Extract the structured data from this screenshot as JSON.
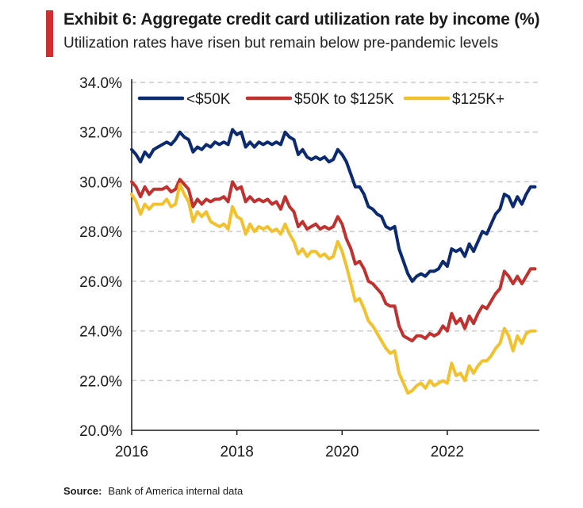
{
  "title": "Exhibit 6: Aggregate credit card utilization rate by income (%)",
  "subtitle": "Utilization rates have risen but remain below pre-pandemic levels",
  "source": {
    "label": "Source:",
    "text": "Bank of America internal data"
  },
  "colors": {
    "accent_bar": "#c8312f",
    "grid": "#c8c8c8",
    "axis": "#1a1a1a"
  },
  "chart_data": {
    "type": "line",
    "ylim": [
      20.0,
      34.0
    ],
    "y_ticks": [
      "20.0%",
      "22.0%",
      "24.0%",
      "26.0%",
      "28.0%",
      "30.0%",
      "32.0%",
      "34.0%"
    ],
    "y_tick_values": [
      20,
      22,
      24,
      26,
      28,
      30,
      32,
      34
    ],
    "x_ticks": [
      "2016",
      "2018",
      "2020",
      "2022"
    ],
    "x_tick_values": [
      2016,
      2018,
      2020,
      2022
    ],
    "xlim": [
      2016,
      2023.75
    ],
    "grid": "horizontal dashed",
    "legend_position": "top",
    "series": [
      {
        "name": "<$50K",
        "color": "#0b2a6f",
        "points": [
          [
            2016.0,
            31.3
          ],
          [
            2016.083,
            31.1
          ],
          [
            2016.167,
            30.8
          ],
          [
            2016.25,
            31.2
          ],
          [
            2016.333,
            31.0
          ],
          [
            2016.417,
            31.3
          ],
          [
            2016.5,
            31.4
          ],
          [
            2016.583,
            31.5
          ],
          [
            2016.667,
            31.6
          ],
          [
            2016.75,
            31.5
          ],
          [
            2016.833,
            31.7
          ],
          [
            2016.917,
            32.0
          ],
          [
            2017.0,
            31.8
          ],
          [
            2017.083,
            31.7
          ],
          [
            2017.167,
            31.2
          ],
          [
            2017.25,
            31.4
          ],
          [
            2017.333,
            31.3
          ],
          [
            2017.417,
            31.5
          ],
          [
            2017.5,
            31.4
          ],
          [
            2017.583,
            31.6
          ],
          [
            2017.667,
            31.5
          ],
          [
            2017.75,
            31.6
          ],
          [
            2017.833,
            31.5
          ],
          [
            2017.917,
            32.1
          ],
          [
            2018.0,
            31.9
          ],
          [
            2018.083,
            32.0
          ],
          [
            2018.167,
            31.4
          ],
          [
            2018.25,
            31.6
          ],
          [
            2018.333,
            31.4
          ],
          [
            2018.417,
            31.6
          ],
          [
            2018.5,
            31.5
          ],
          [
            2018.583,
            31.6
          ],
          [
            2018.667,
            31.5
          ],
          [
            2018.75,
            31.6
          ],
          [
            2018.833,
            31.5
          ],
          [
            2018.917,
            32.0
          ],
          [
            2019.0,
            31.8
          ],
          [
            2019.083,
            31.7
          ],
          [
            2019.167,
            31.1
          ],
          [
            2019.25,
            31.3
          ],
          [
            2019.333,
            31.0
          ],
          [
            2019.417,
            30.9
          ],
          [
            2019.5,
            31.0
          ],
          [
            2019.583,
            30.9
          ],
          [
            2019.667,
            31.0
          ],
          [
            2019.75,
            30.8
          ],
          [
            2019.833,
            30.9
          ],
          [
            2019.917,
            31.3
          ],
          [
            2020.0,
            31.1
          ],
          [
            2020.083,
            30.8
          ],
          [
            2020.167,
            30.3
          ],
          [
            2020.25,
            29.8
          ],
          [
            2020.333,
            29.8
          ],
          [
            2020.417,
            29.5
          ],
          [
            2020.5,
            29.0
          ],
          [
            2020.583,
            28.9
          ],
          [
            2020.667,
            28.7
          ],
          [
            2020.75,
            28.6
          ],
          [
            2020.833,
            28.2
          ],
          [
            2020.917,
            28.1
          ],
          [
            2021.0,
            28.2
          ],
          [
            2021.083,
            27.3
          ],
          [
            2021.167,
            26.8
          ],
          [
            2021.25,
            26.3
          ],
          [
            2021.333,
            26.0
          ],
          [
            2021.417,
            26.2
          ],
          [
            2021.5,
            26.3
          ],
          [
            2021.583,
            26.2
          ],
          [
            2021.667,
            26.4
          ],
          [
            2021.75,
            26.4
          ],
          [
            2021.833,
            26.5
          ],
          [
            2021.917,
            26.8
          ],
          [
            2022.0,
            26.6
          ],
          [
            2022.083,
            27.3
          ],
          [
            2022.167,
            27.2
          ],
          [
            2022.25,
            27.3
          ],
          [
            2022.333,
            27.0
          ],
          [
            2022.417,
            27.5
          ],
          [
            2022.5,
            27.2
          ],
          [
            2022.583,
            27.6
          ],
          [
            2022.667,
            28.0
          ],
          [
            2022.75,
            27.9
          ],
          [
            2022.833,
            28.3
          ],
          [
            2022.917,
            28.7
          ],
          [
            2023.0,
            28.9
          ],
          [
            2023.083,
            29.5
          ],
          [
            2023.167,
            29.4
          ],
          [
            2023.25,
            29.0
          ],
          [
            2023.333,
            29.4
          ],
          [
            2023.417,
            29.1
          ],
          [
            2023.5,
            29.5
          ],
          [
            2023.583,
            29.8
          ],
          [
            2023.667,
            29.8
          ]
        ]
      },
      {
        "name": "$50K to $125K",
        "color": "#c0322f",
        "points": [
          [
            2016.0,
            30.0
          ],
          [
            2016.083,
            29.8
          ],
          [
            2016.167,
            29.4
          ],
          [
            2016.25,
            29.8
          ],
          [
            2016.333,
            29.5
          ],
          [
            2016.417,
            29.7
          ],
          [
            2016.5,
            29.7
          ],
          [
            2016.583,
            29.7
          ],
          [
            2016.667,
            29.8
          ],
          [
            2016.75,
            29.6
          ],
          [
            2016.833,
            29.7
          ],
          [
            2016.917,
            30.1
          ],
          [
            2017.0,
            29.9
          ],
          [
            2017.083,
            29.7
          ],
          [
            2017.167,
            29.0
          ],
          [
            2017.25,
            29.3
          ],
          [
            2017.333,
            29.1
          ],
          [
            2017.417,
            29.3
          ],
          [
            2017.5,
            29.2
          ],
          [
            2017.583,
            29.3
          ],
          [
            2017.667,
            29.3
          ],
          [
            2017.75,
            29.4
          ],
          [
            2017.833,
            29.2
          ],
          [
            2017.917,
            30.0
          ],
          [
            2018.0,
            29.7
          ],
          [
            2018.083,
            29.8
          ],
          [
            2018.167,
            29.2
          ],
          [
            2018.25,
            29.4
          ],
          [
            2018.333,
            29.2
          ],
          [
            2018.417,
            29.3
          ],
          [
            2018.5,
            29.2
          ],
          [
            2018.583,
            29.3
          ],
          [
            2018.667,
            29.1
          ],
          [
            2018.75,
            29.2
          ],
          [
            2018.833,
            28.9
          ],
          [
            2018.917,
            29.4
          ],
          [
            2019.0,
            29.0
          ],
          [
            2019.083,
            28.8
          ],
          [
            2019.167,
            28.2
          ],
          [
            2019.25,
            28.4
          ],
          [
            2019.333,
            28.1
          ],
          [
            2019.417,
            28.2
          ],
          [
            2019.5,
            28.3
          ],
          [
            2019.583,
            28.1
          ],
          [
            2019.667,
            28.2
          ],
          [
            2019.75,
            28.1
          ],
          [
            2019.833,
            28.2
          ],
          [
            2019.917,
            28.6
          ],
          [
            2020.0,
            28.3
          ],
          [
            2020.083,
            27.7
          ],
          [
            2020.167,
            27.3
          ],
          [
            2020.25,
            26.7
          ],
          [
            2020.333,
            26.8
          ],
          [
            2020.417,
            26.5
          ],
          [
            2020.5,
            26.0
          ],
          [
            2020.583,
            25.9
          ],
          [
            2020.667,
            25.7
          ],
          [
            2020.75,
            25.5
          ],
          [
            2020.833,
            25.1
          ],
          [
            2020.917,
            25.0
          ],
          [
            2021.0,
            25.0
          ],
          [
            2021.083,
            24.2
          ],
          [
            2021.167,
            23.8
          ],
          [
            2021.25,
            23.7
          ],
          [
            2021.333,
            23.6
          ],
          [
            2021.417,
            23.8
          ],
          [
            2021.5,
            23.8
          ],
          [
            2021.583,
            23.7
          ],
          [
            2021.667,
            23.9
          ],
          [
            2021.75,
            23.8
          ],
          [
            2021.833,
            23.9
          ],
          [
            2021.917,
            24.2
          ],
          [
            2022.0,
            24.0
          ],
          [
            2022.083,
            24.7
          ],
          [
            2022.167,
            24.3
          ],
          [
            2022.25,
            24.5
          ],
          [
            2022.333,
            24.1
          ],
          [
            2022.417,
            24.6
          ],
          [
            2022.5,
            24.3
          ],
          [
            2022.583,
            24.7
          ],
          [
            2022.667,
            25.0
          ],
          [
            2022.75,
            24.9
          ],
          [
            2022.833,
            25.2
          ],
          [
            2022.917,
            25.5
          ],
          [
            2023.0,
            25.7
          ],
          [
            2023.083,
            26.4
          ],
          [
            2023.167,
            26.2
          ],
          [
            2023.25,
            25.9
          ],
          [
            2023.333,
            26.2
          ],
          [
            2023.417,
            25.9
          ],
          [
            2023.5,
            26.2
          ],
          [
            2023.583,
            26.5
          ],
          [
            2023.667,
            26.5
          ]
        ]
      },
      {
        "name": "$125K+",
        "color": "#f2c12e",
        "points": [
          [
            2016.0,
            29.5
          ],
          [
            2016.083,
            29.2
          ],
          [
            2016.167,
            28.7
          ],
          [
            2016.25,
            29.1
          ],
          [
            2016.333,
            28.9
          ],
          [
            2016.417,
            29.1
          ],
          [
            2016.5,
            29.1
          ],
          [
            2016.583,
            29.1
          ],
          [
            2016.667,
            29.3
          ],
          [
            2016.75,
            29.0
          ],
          [
            2016.833,
            29.1
          ],
          [
            2016.917,
            29.9
          ],
          [
            2017.0,
            29.5
          ],
          [
            2017.083,
            29.2
          ],
          [
            2017.167,
            28.4
          ],
          [
            2017.25,
            28.8
          ],
          [
            2017.333,
            28.6
          ],
          [
            2017.417,
            28.8
          ],
          [
            2017.5,
            28.4
          ],
          [
            2017.583,
            28.3
          ],
          [
            2017.667,
            28.2
          ],
          [
            2017.75,
            28.3
          ],
          [
            2017.833,
            28.1
          ],
          [
            2017.917,
            29.0
          ],
          [
            2018.0,
            28.6
          ],
          [
            2018.083,
            28.5
          ],
          [
            2018.167,
            27.9
          ],
          [
            2018.25,
            28.3
          ],
          [
            2018.333,
            28.0
          ],
          [
            2018.417,
            28.2
          ],
          [
            2018.5,
            28.1
          ],
          [
            2018.583,
            28.2
          ],
          [
            2018.667,
            28.0
          ],
          [
            2018.75,
            28.1
          ],
          [
            2018.833,
            27.9
          ],
          [
            2018.917,
            28.3
          ],
          [
            2019.0,
            27.9
          ],
          [
            2019.083,
            27.6
          ],
          [
            2019.167,
            27.1
          ],
          [
            2019.25,
            27.3
          ],
          [
            2019.333,
            27.0
          ],
          [
            2019.417,
            27.2
          ],
          [
            2019.5,
            27.2
          ],
          [
            2019.583,
            27.0
          ],
          [
            2019.667,
            27.1
          ],
          [
            2019.75,
            26.9
          ],
          [
            2019.833,
            27.0
          ],
          [
            2019.917,
            27.6
          ],
          [
            2020.0,
            27.2
          ],
          [
            2020.083,
            26.6
          ],
          [
            2020.167,
            25.9
          ],
          [
            2020.25,
            25.2
          ],
          [
            2020.333,
            25.3
          ],
          [
            2020.417,
            24.9
          ],
          [
            2020.5,
            24.4
          ],
          [
            2020.583,
            24.2
          ],
          [
            2020.667,
            23.9
          ],
          [
            2020.75,
            23.6
          ],
          [
            2020.833,
            23.3
          ],
          [
            2020.917,
            23.1
          ],
          [
            2021.0,
            23.2
          ],
          [
            2021.083,
            22.3
          ],
          [
            2021.167,
            21.9
          ],
          [
            2021.25,
            21.5
          ],
          [
            2021.333,
            21.6
          ],
          [
            2021.417,
            21.8
          ],
          [
            2021.5,
            21.9
          ],
          [
            2021.583,
            21.7
          ],
          [
            2021.667,
            22.0
          ],
          [
            2021.75,
            21.8
          ],
          [
            2021.833,
            21.9
          ],
          [
            2021.917,
            22.0
          ],
          [
            2022.0,
            21.9
          ],
          [
            2022.083,
            22.7
          ],
          [
            2022.167,
            22.2
          ],
          [
            2022.25,
            22.3
          ],
          [
            2022.333,
            22.0
          ],
          [
            2022.417,
            22.6
          ],
          [
            2022.5,
            22.3
          ],
          [
            2022.583,
            22.6
          ],
          [
            2022.667,
            22.8
          ],
          [
            2022.75,
            22.8
          ],
          [
            2022.833,
            23.0
          ],
          [
            2022.917,
            23.3
          ],
          [
            2023.0,
            23.5
          ],
          [
            2023.083,
            24.1
          ],
          [
            2023.167,
            23.8
          ],
          [
            2023.25,
            23.2
          ],
          [
            2023.333,
            23.8
          ],
          [
            2023.417,
            23.5
          ],
          [
            2023.5,
            23.9
          ],
          [
            2023.583,
            24.0
          ],
          [
            2023.667,
            24.0
          ]
        ]
      }
    ]
  }
}
